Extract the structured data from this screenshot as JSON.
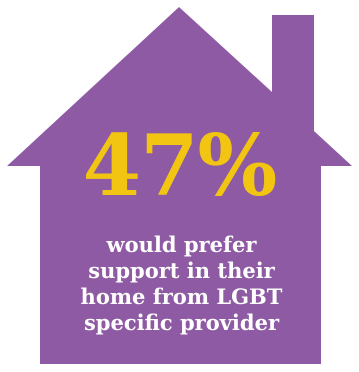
{
  "colors": {
    "house_fill": "#8e5aa3",
    "stat_color": "#f2c512",
    "caption_color": "#ffffff",
    "background": "#ffffff"
  },
  "icon": "house-icon",
  "stat": {
    "value": "47%"
  },
  "caption": {
    "lines": [
      "would prefer",
      "support in their",
      "home from LGBT",
      "specific provider"
    ]
  }
}
